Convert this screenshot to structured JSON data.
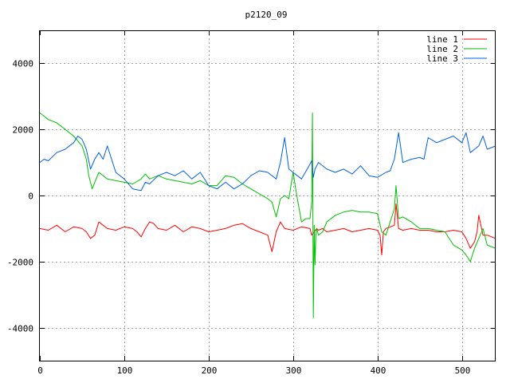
{
  "chart_data": {
    "type": "line",
    "title": "p2120_09",
    "xlabel": "",
    "ylabel": "",
    "xlim": [
      0,
      540
    ],
    "ylim": [
      -5000,
      5000
    ],
    "grid": true,
    "legend_position": "top-right",
    "x_ticks": [
      0,
      100,
      200,
      300,
      400,
      500
    ],
    "y_ticks": [
      -4000,
      -2000,
      0,
      2000,
      4000
    ],
    "x_tick_labels": [
      "0",
      "100",
      "200",
      "300",
      "400",
      "500"
    ],
    "y_tick_labels": [
      "-4000",
      "-2000",
      "0",
      "2000",
      "4000"
    ],
    "series": [
      {
        "name": "line 1",
        "color": "#ff0000",
        "x": [
          0,
          10,
          20,
          30,
          40,
          50,
          55,
          60,
          65,
          70,
          75,
          80,
          90,
          100,
          110,
          115,
          120,
          125,
          130,
          135,
          140,
          150,
          160,
          170,
          180,
          190,
          200,
          210,
          220,
          230,
          240,
          250,
          260,
          270,
          275,
          280,
          285,
          290,
          300,
          310,
          320,
          322,
          325,
          328,
          330,
          335,
          340,
          350,
          360,
          370,
          380,
          390,
          400,
          403,
          405,
          407,
          410,
          420,
          422,
          425,
          430,
          440,
          450,
          460,
          470,
          480,
          490,
          500,
          505,
          510,
          515,
          518,
          520,
          525,
          530,
          540
        ],
        "y": [
          -1000,
          -1050,
          -900,
          -1100,
          -950,
          -1000,
          -1100,
          -1300,
          -1200,
          -800,
          -900,
          -1000,
          -1050,
          -950,
          -1000,
          -1100,
          -1250,
          -1000,
          -800,
          -850,
          -1000,
          -1050,
          -900,
          -1100,
          -950,
          -1000,
          -1100,
          -1050,
          -1000,
          -900,
          -850,
          -1000,
          -1100,
          -1200,
          -1700,
          -1100,
          -800,
          -1000,
          -1050,
          -950,
          -1000,
          -1200,
          -1100,
          -1000,
          -1050,
          -1000,
          -1100,
          -1050,
          -1000,
          -1100,
          -1050,
          -1000,
          -1050,
          -1200,
          -1800,
          -1100,
          -1000,
          -900,
          -250,
          -1000,
          -1050,
          -1000,
          -1050,
          -1050,
          -1100,
          -1100,
          -1050,
          -1100,
          -1300,
          -1600,
          -1400,
          -1100,
          -600,
          -1200,
          -1200,
          -1300
        ]
      },
      {
        "name": "line 2",
        "color": "#00c000",
        "x": [
          0,
          5,
          10,
          20,
          30,
          40,
          50,
          55,
          58,
          62,
          65,
          70,
          80,
          90,
          100,
          110,
          120,
          125,
          130,
          140,
          150,
          160,
          170,
          180,
          190,
          200,
          210,
          220,
          230,
          240,
          250,
          260,
          270,
          275,
          280,
          285,
          290,
          295,
          300,
          305,
          310,
          315,
          320,
          322,
          323,
          324,
          325,
          326,
          327,
          328,
          330,
          335,
          340,
          350,
          360,
          370,
          380,
          390,
          400,
          405,
          410,
          415,
          420,
          422,
          425,
          430,
          440,
          450,
          460,
          470,
          480,
          490,
          500,
          505,
          510,
          515,
          520,
          525,
          530,
          540
        ],
        "y": [
          2500,
          2400,
          2300,
          2200,
          2000,
          1800,
          1500,
          1100,
          600,
          200,
          400,
          700,
          500,
          450,
          400,
          350,
          500,
          650,
          500,
          600,
          500,
          450,
          400,
          350,
          450,
          300,
          300,
          600,
          550,
          350,
          200,
          50,
          -100,
          -200,
          -650,
          -100,
          0,
          -100,
          700,
          -100,
          -800,
          -700,
          -700,
          -200,
          2500,
          -3700,
          -900,
          -2100,
          -1200,
          -1000,
          -1200,
          -1100,
          -800,
          -600,
          -500,
          -450,
          -500,
          -500,
          -550,
          -1100,
          -1200,
          -800,
          -400,
          300,
          -700,
          -650,
          -800,
          -1000,
          -1000,
          -1050,
          -1100,
          -1500,
          -1650,
          -1800,
          -2000,
          -1600,
          -1300,
          -1000,
          -1500,
          -1600
        ]
      },
      {
        "name": "line 3",
        "color": "#0060e0",
        "x": [
          0,
          5,
          10,
          20,
          30,
          40,
          45,
          50,
          55,
          60,
          65,
          70,
          75,
          80,
          90,
          100,
          110,
          120,
          125,
          130,
          140,
          150,
          160,
          170,
          180,
          190,
          200,
          210,
          220,
          230,
          240,
          250,
          260,
          270,
          280,
          285,
          290,
          295,
          300,
          310,
          320,
          322,
          324,
          326,
          330,
          340,
          350,
          360,
          370,
          380,
          390,
          400,
          410,
          415,
          420,
          425,
          430,
          440,
          450,
          455,
          460,
          470,
          480,
          490,
          500,
          505,
          510,
          520,
          525,
          530,
          540
        ],
        "y": [
          1000,
          1100,
          1050,
          1300,
          1400,
          1600,
          1800,
          1700,
          1400,
          800,
          1100,
          1300,
          1100,
          1500,
          700,
          500,
          200,
          150,
          400,
          350,
          600,
          700,
          600,
          750,
          500,
          700,
          300,
          200,
          400,
          200,
          350,
          600,
          750,
          700,
          500,
          1000,
          1750,
          800,
          700,
          500,
          950,
          1050,
          550,
          800,
          1000,
          800,
          700,
          800,
          650,
          900,
          600,
          550,
          700,
          750,
          1100,
          1900,
          1000,
          1100,
          1150,
          1100,
          1750,
          1600,
          1700,
          1800,
          1600,
          1900,
          1300,
          1500,
          1800,
          1400,
          1500
        ]
      }
    ]
  }
}
